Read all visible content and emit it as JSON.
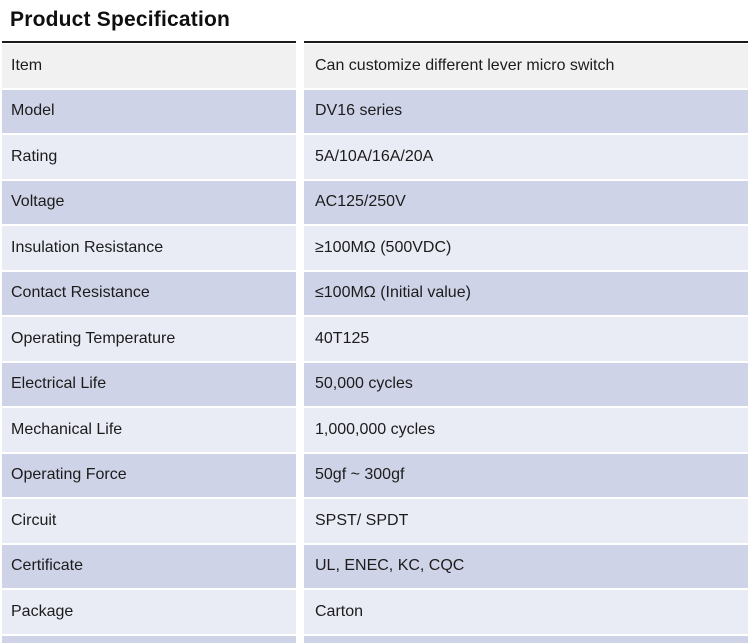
{
  "page": {
    "title": "Product Specification"
  },
  "table": {
    "rows": [
      {
        "label": "Item",
        "value": "Can customize different lever micro switch"
      },
      {
        "label": "Model",
        "value": "DV16 series"
      },
      {
        "label": "Rating",
        "value": "5A/10A/16A/20A"
      },
      {
        "label": "Voltage",
        "value": "AC125/250V"
      },
      {
        "label": "Insulation Resistance",
        "value": "≥100MΩ (500VDC)"
      },
      {
        "label": "Contact Resistance",
        "value": "≤100MΩ (Initial value)"
      },
      {
        "label": "Operating Temperature",
        "value": "40T125"
      },
      {
        "label": "Electrical Life",
        "value": "50,000 cycles"
      },
      {
        "label": "Mechanical Life",
        "value": "1,000,000 cycles"
      },
      {
        "label": "Operating Force",
        "value": "50gf ~ 300gf"
      },
      {
        "label": "Circuit",
        "value": "SPST/ SPDT"
      },
      {
        "label": "Certificate",
        "value": "UL, ENEC, KC, CQC"
      },
      {
        "label": "Package",
        "value": "Carton"
      }
    ],
    "colors": {
      "header_row_bg": "#f1f1f2",
      "dark_row_bg": "#cfd3e7",
      "light_row_bg": "#e9ebf5",
      "top_border": "#1a1a1a",
      "text": "#1c1c1c"
    }
  }
}
